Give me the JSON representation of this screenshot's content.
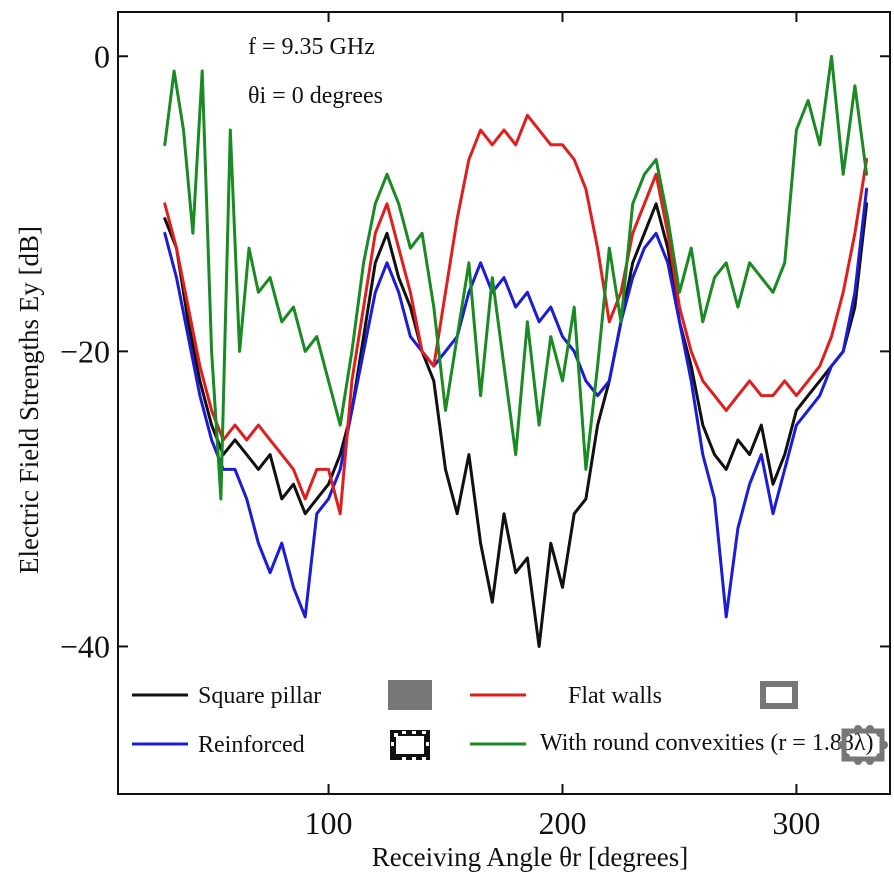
{
  "chart_data": {
    "type": "line",
    "xlabel": "Receiving Angle θr [degrees]",
    "ylabel": "Electric Field Strengths Ey [dB]",
    "xlim": [
      10,
      340
    ],
    "ylim": [
      -50,
      3
    ],
    "xticks": [
      100,
      200,
      300
    ],
    "yticks": [
      0,
      -20,
      -40
    ],
    "xtick_labels": [
      "100",
      "200",
      "300"
    ],
    "ytick_labels": [
      "0",
      "−20",
      "−40"
    ],
    "grid": false,
    "legend_position": "bottom",
    "annotations": [
      "f = 9.35 GHz",
      "θi = 0 degrees"
    ],
    "colors": {
      "black": "#111111",
      "blue": "#1c1cd6",
      "red": "#e01e1e",
      "green": "#1a8a22"
    },
    "series": [
      {
        "name": "Square pillar",
        "color": "#111111",
        "x": [
          30,
          35,
          40,
          45,
          50,
          55,
          60,
          65,
          70,
          75,
          80,
          85,
          90,
          95,
          100,
          105,
          110,
          115,
          120,
          125,
          130,
          135,
          140,
          145,
          150,
          155,
          160,
          165,
          170,
          175,
          180,
          185,
          190,
          195,
          200,
          205,
          210,
          215,
          220,
          225,
          230,
          235,
          240,
          245,
          250,
          255,
          260,
          265,
          270,
          275,
          280,
          285,
          290,
          295,
          300,
          305,
          310,
          315,
          320,
          325,
          330
        ],
        "y": [
          -11,
          -13,
          -18,
          -22,
          -25,
          -27,
          -26,
          -27,
          -28,
          -27,
          -30,
          -29,
          -31,
          -30,
          -29,
          -27,
          -24,
          -19,
          -14,
          -12,
          -15,
          -17,
          -20,
          -22,
          -28,
          -31,
          -27,
          -33,
          -37,
          -31,
          -35,
          -34,
          -40,
          -33,
          -36,
          -31,
          -30,
          -25,
          -22,
          -18,
          -14,
          -12,
          -10,
          -13,
          -18,
          -21,
          -25,
          -27,
          -28,
          -26,
          -27,
          -25,
          -29,
          -27,
          -24,
          -23,
          -22,
          -21,
          -20,
          -17,
          -10
        ]
      },
      {
        "name": "Reinforced",
        "color": "#1c1cd6",
        "x": [
          30,
          35,
          40,
          45,
          50,
          55,
          60,
          65,
          70,
          75,
          80,
          85,
          90,
          95,
          100,
          105,
          110,
          115,
          120,
          125,
          130,
          135,
          140,
          145,
          150,
          155,
          160,
          165,
          170,
          175,
          180,
          185,
          190,
          195,
          200,
          205,
          210,
          215,
          220,
          225,
          230,
          235,
          240,
          245,
          250,
          255,
          260,
          265,
          270,
          275,
          280,
          285,
          290,
          295,
          300,
          305,
          310,
          315,
          320,
          325,
          330
        ],
        "y": [
          -12,
          -15,
          -19,
          -23,
          -26,
          -28,
          -28,
          -30,
          -33,
          -35,
          -33,
          -36,
          -38,
          -31,
          -30,
          -28,
          -24,
          -20,
          -16,
          -14,
          -16,
          -19,
          -20,
          -21,
          -20,
          -19,
          -16,
          -14,
          -16,
          -15,
          -17,
          -16,
          -18,
          -17,
          -19,
          -20,
          -22,
          -23,
          -22,
          -18,
          -15,
          -13,
          -12,
          -14,
          -18,
          -22,
          -27,
          -30,
          -38,
          -32,
          -29,
          -27,
          -31,
          -28,
          -25,
          -24,
          -23,
          -21,
          -20,
          -16,
          -9
        ]
      },
      {
        "name": "Flat walls",
        "color": "#e01e1e",
        "x": [
          30,
          35,
          40,
          45,
          50,
          55,
          60,
          65,
          70,
          75,
          80,
          85,
          90,
          95,
          100,
          105,
          110,
          115,
          120,
          125,
          130,
          135,
          140,
          145,
          150,
          155,
          160,
          165,
          170,
          175,
          180,
          185,
          190,
          195,
          200,
          205,
          210,
          215,
          220,
          225,
          230,
          235,
          240,
          245,
          250,
          255,
          260,
          265,
          270,
          275,
          280,
          285,
          290,
          295,
          300,
          305,
          310,
          315,
          320,
          325,
          330
        ],
        "y": [
          -10,
          -13,
          -17,
          -21,
          -24,
          -26,
          -25,
          -26,
          -25,
          -26,
          -27,
          -28,
          -30,
          -28,
          -28,
          -31,
          -22,
          -17,
          -12,
          -10,
          -13,
          -16,
          -20,
          -21,
          -16,
          -11,
          -7,
          -5,
          -6,
          -5,
          -6,
          -4,
          -5,
          -6,
          -6,
          -7,
          -9,
          -13,
          -18,
          -16,
          -12,
          -10,
          -8,
          -12,
          -17,
          -20,
          -22,
          -23,
          -24,
          -23,
          -22,
          -23,
          -23,
          -22,
          -23,
          -22,
          -21,
          -19,
          -16,
          -12,
          -7
        ]
      },
      {
        "name": "With round convexities (r = 1.88λ)",
        "color": "#1a8a22",
        "x": [
          30,
          34,
          38,
          42,
          46,
          50,
          54,
          58,
          62,
          66,
          70,
          75,
          80,
          85,
          90,
          95,
          100,
          105,
          110,
          115,
          120,
          125,
          130,
          135,
          140,
          145,
          150,
          155,
          160,
          165,
          170,
          175,
          180,
          185,
          190,
          195,
          200,
          205,
          210,
          215,
          220,
          225,
          230,
          235,
          240,
          245,
          250,
          255,
          260,
          265,
          270,
          275,
          280,
          285,
          290,
          295,
          300,
          305,
          310,
          315,
          320,
          325,
          330
        ],
        "y": [
          -6,
          -1,
          -5,
          -12,
          -1,
          -20,
          -30,
          -5,
          -20,
          -13,
          -16,
          -15,
          -18,
          -17,
          -20,
          -19,
          -22,
          -25,
          -20,
          -14,
          -10,
          -8,
          -10,
          -13,
          -12,
          -17,
          -24,
          -19,
          -14,
          -23,
          -15,
          -21,
          -27,
          -18,
          -25,
          -19,
          -22,
          -17,
          -28,
          -21,
          -13,
          -18,
          -10,
          -8,
          -7,
          -11,
          -16,
          -13,
          -18,
          -15,
          -14,
          -17,
          -14,
          -15,
          -16,
          -14,
          -5,
          -3,
          -6,
          0,
          -8,
          -2,
          -8
        ]
      }
    ],
    "legend_icons": [
      "square-pillar-icon",
      "flat-walls-icon",
      "reinforced-icon",
      "round-convexities-icon"
    ]
  }
}
